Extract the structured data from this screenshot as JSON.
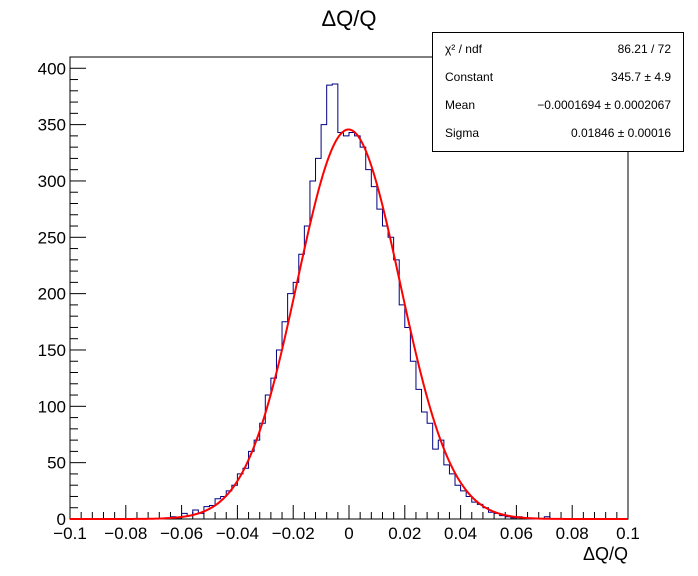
{
  "chart_data": {
    "type": "bar",
    "title": "ΔQ/Q",
    "xlabel": "ΔQ/Q",
    "ylabel": "",
    "xlim": [
      -0.1,
      0.1
    ],
    "ylim": [
      0,
      410
    ],
    "x_ticks": [
      -0.1,
      -0.08,
      -0.06,
      -0.04,
      -0.02,
      0,
      0.02,
      0.04,
      0.06,
      0.08,
      0.1
    ],
    "x_tick_labels": [
      "−0.1",
      "−0.08",
      "−0.06",
      "−0.04",
      "−0.02",
      "0",
      "0.02",
      "0.04",
      "0.06",
      "0.08",
      "0.1"
    ],
    "y_ticks": [
      0,
      50,
      100,
      150,
      200,
      250,
      300,
      350,
      400
    ],
    "y_tick_labels": [
      "0",
      "50",
      "100",
      "150",
      "200",
      "250",
      "300",
      "350",
      "400"
    ],
    "grid": false,
    "bin_width": 0.002,
    "bin_low_edges": [
      -0.1,
      -0.098,
      -0.096,
      -0.094,
      -0.092,
      -0.09,
      -0.088,
      -0.086,
      -0.084,
      -0.082,
      -0.08,
      -0.078,
      -0.076,
      -0.074,
      -0.072,
      -0.07,
      -0.068,
      -0.066,
      -0.064,
      -0.062,
      -0.06,
      -0.058,
      -0.056,
      -0.054,
      -0.052,
      -0.05,
      -0.048,
      -0.046,
      -0.044,
      -0.042,
      -0.04,
      -0.038,
      -0.036,
      -0.034,
      -0.032,
      -0.03,
      -0.028,
      -0.026,
      -0.024,
      -0.022,
      -0.02,
      -0.018,
      -0.016,
      -0.014,
      -0.012,
      -0.01,
      -0.008,
      -0.006,
      -0.004,
      -0.002,
      0,
      0.002,
      0.004,
      0.006,
      0.008,
      0.01,
      0.012,
      0.014,
      0.016,
      0.018,
      0.02,
      0.022,
      0.024,
      0.026,
      0.028,
      0.03,
      0.032,
      0.034,
      0.036,
      0.038,
      0.04,
      0.042,
      0.044,
      0.046,
      0.048,
      0.05,
      0.052,
      0.054,
      0.056,
      0.058,
      0.06,
      0.062,
      0.064,
      0.066,
      0.068,
      0.07,
      0.072,
      0.074,
      0.076,
      0.078,
      0.08,
      0.082,
      0.084,
      0.086,
      0.088,
      0.09,
      0.092,
      0.094,
      0.096,
      0.098
    ],
    "series": [
      {
        "style": "histogram-step",
        "color": "#000080",
        "values": [
          0,
          0,
          0,
          0,
          0,
          0,
          0,
          0,
          0,
          0,
          0,
          0,
          0,
          0,
          0,
          0,
          0,
          1,
          2,
          1,
          5,
          3,
          8,
          5,
          11,
          12,
          18,
          20,
          25,
          30,
          40,
          45,
          60,
          70,
          85,
          110,
          125,
          150,
          175,
          200,
          210,
          235,
          260,
          300,
          320,
          350,
          385,
          386,
          343,
          340,
          343,
          340,
          330,
          310,
          295,
          275,
          260,
          250,
          230,
          190,
          170,
          140,
          115,
          95,
          85,
          62,
          70,
          48,
          40,
          30,
          25,
          20,
          15,
          13,
          10,
          6,
          5,
          3,
          2,
          1,
          2,
          1,
          0,
          0,
          0,
          2,
          0,
          0,
          0,
          0,
          0,
          0,
          0,
          0,
          0,
          0,
          0,
          0,
          0,
          0
        ]
      },
      {
        "style": "gaussian-fit",
        "color": "#ff0000",
        "constant": 345.7,
        "mean": -0.0001694,
        "sigma": 0.01846
      }
    ]
  },
  "stats": {
    "rows": [
      {
        "label": "χ² / ndf",
        "value": "86.21 / 72"
      },
      {
        "label": "Constant",
        "value": "345.7 ± 4.9"
      },
      {
        "label": "Mean",
        "value": "−0.0001694 ± 0.0002067"
      },
      {
        "label": "Sigma",
        "value": "0.01846 ± 0.00016"
      }
    ]
  }
}
